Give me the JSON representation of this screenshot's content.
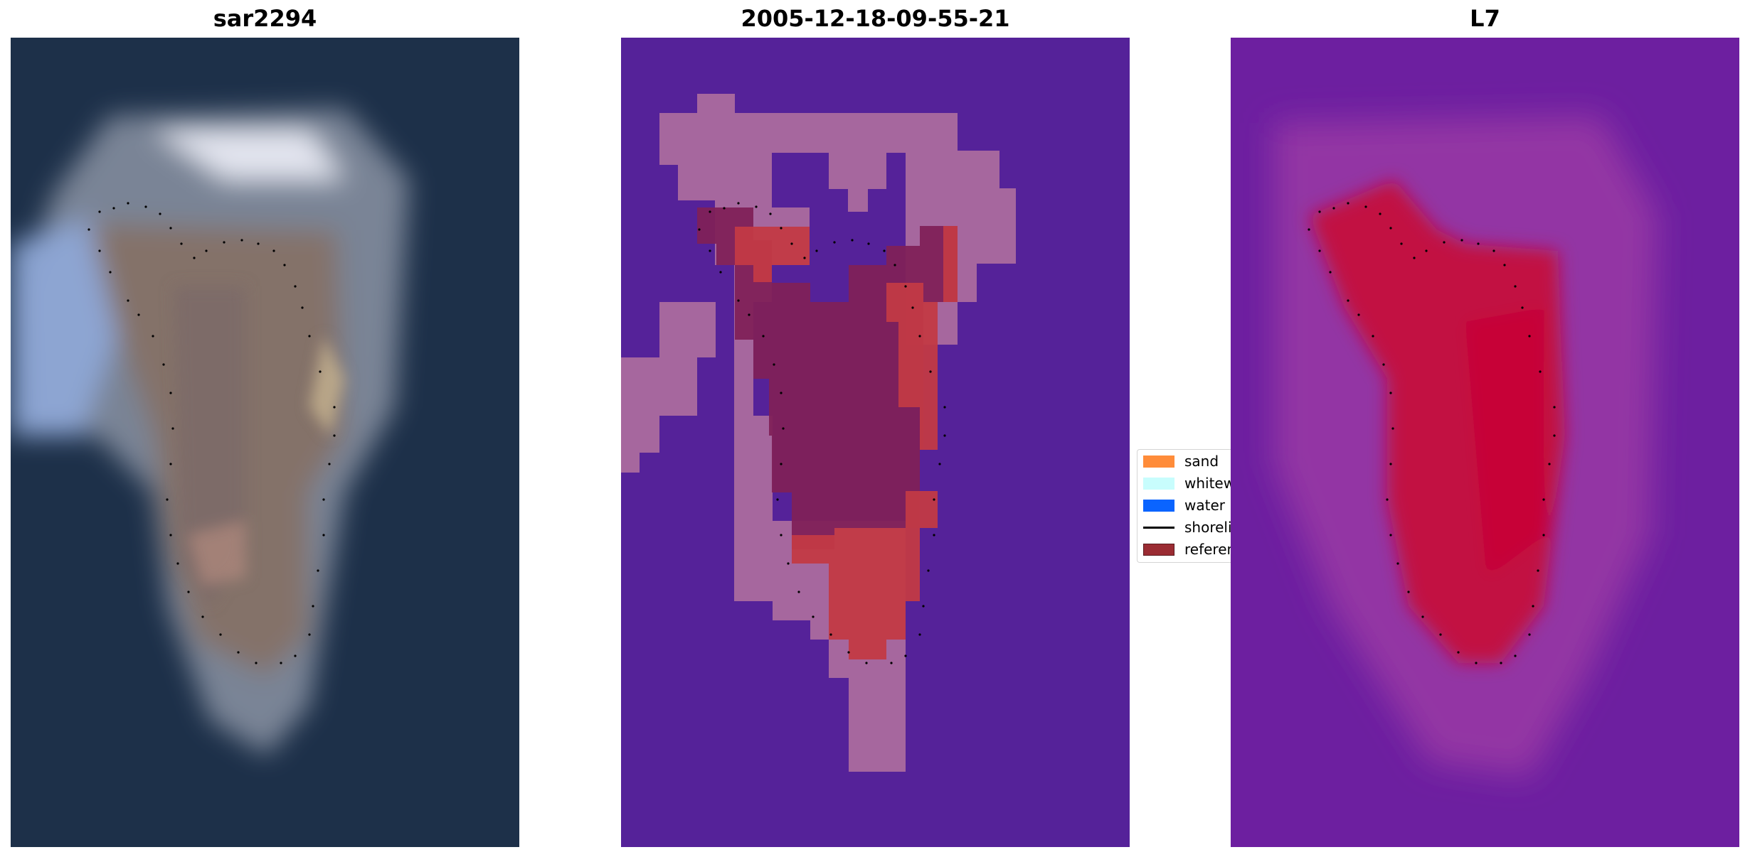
{
  "panels": [
    {
      "title": "sar2294",
      "type": "rgb-image"
    },
    {
      "title": "2005-12-18-09-55-21",
      "type": "classified-image"
    },
    {
      "title": "L7",
      "type": "index-image"
    }
  ],
  "legend": {
    "items": [
      {
        "label": "sand",
        "color": "#ff8c3a",
        "kind": "patch"
      },
      {
        "label": "whitewater",
        "color": "#c8fdfd",
        "kind": "patch"
      },
      {
        "label": "water",
        "color": "#0a64ff",
        "kind": "patch"
      },
      {
        "label": "shoreline",
        "color": "#000000",
        "kind": "line"
      },
      {
        "label": "reference",
        "color": "#9b2c33",
        "kind": "patch"
      }
    ]
  },
  "colors": {
    "rgb_background": "#1d3049",
    "class_background": "#552299",
    "class_sand_overlay": "#a6679e",
    "class_reference_dark": "#7f2159",
    "class_reference_red": "#c23a45",
    "index_background": "#6d1fa0",
    "index_red": "#c5083a"
  }
}
